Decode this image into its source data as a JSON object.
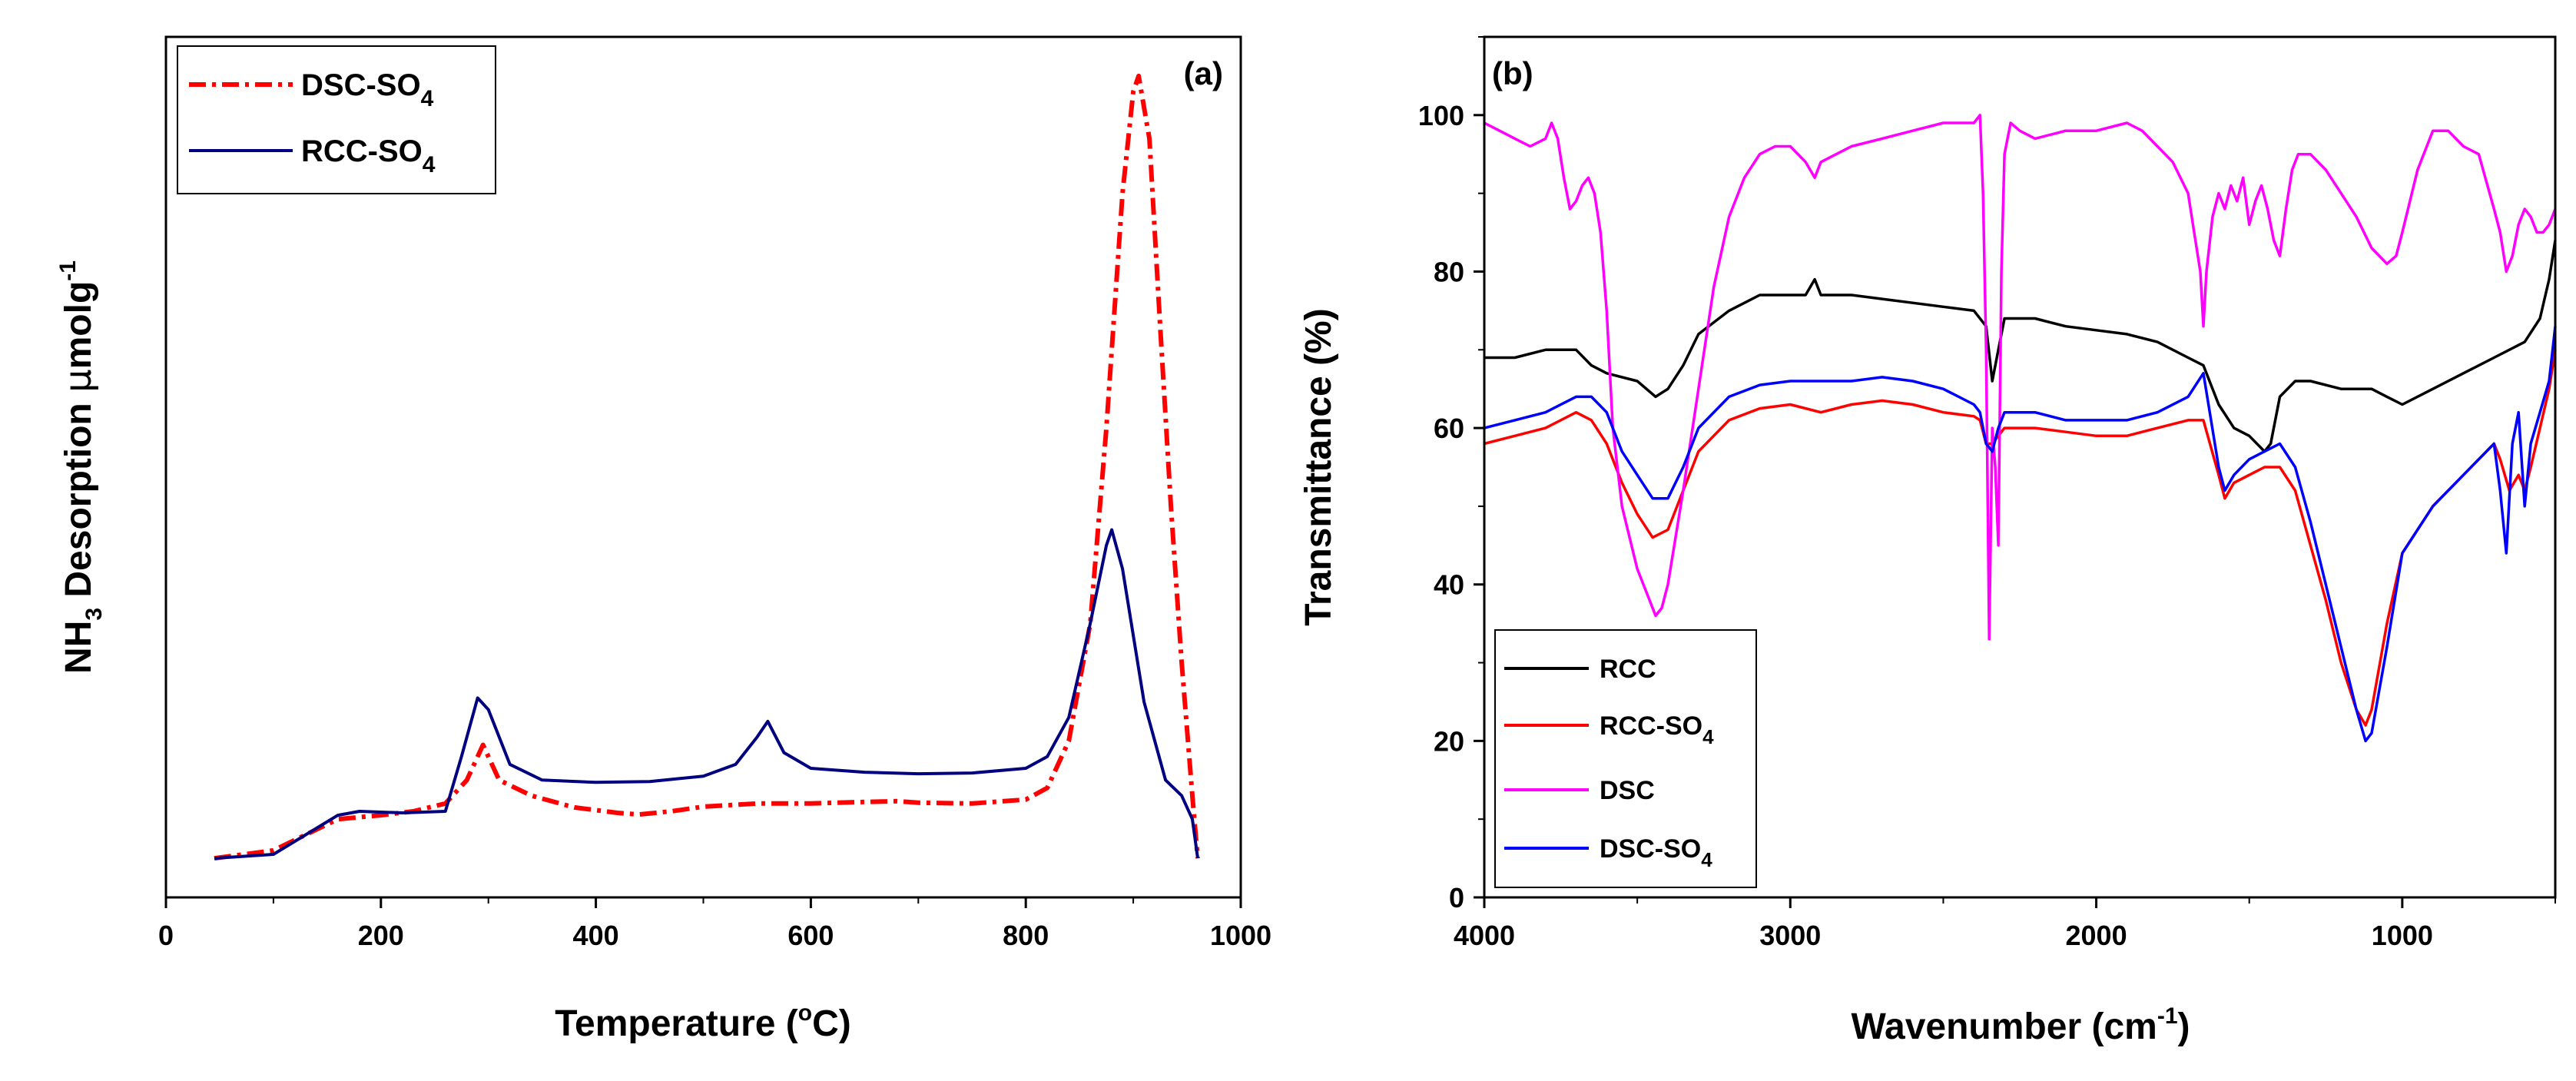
{
  "chart_data": [
    {
      "type": "line",
      "panel_label": "(a)",
      "xlabel": "Temperature (°C)",
      "xlabel_parts": {
        "prefix": "Temperature (",
        "sup": "o",
        "suffix": "C)"
      },
      "ylabel": "NH3 Desorption μmolg-1",
      "ylabel_parts": {
        "a": "NH",
        "sub": "3",
        "b": " Desorption ",
        "mu": "μ",
        "c": "molg",
        "sup": "-1"
      },
      "xlim": [
        0,
        1000
      ],
      "ylim": [
        -0.05,
        1.05
      ],
      "xticks": [
        "0",
        "200",
        "400",
        "600",
        "800",
        "1000"
      ],
      "yticks_shown": false,
      "legend_position": "top-left",
      "series": [
        {
          "name": "DSC-SO4",
          "label_parts": {
            "base": "DSC-SO",
            "sub": "4"
          },
          "color": "#ff0000",
          "style": "dash-dot",
          "x": [
            45,
            100,
            130,
            160,
            200,
            230,
            260,
            280,
            295,
            310,
            340,
            380,
            420,
            440,
            470,
            500,
            550,
            600,
            650,
            680,
            700,
            750,
            800,
            820,
            840,
            860,
            875,
            890,
            900,
            905,
            915,
            925,
            935,
            945,
            955,
            960
          ],
          "y": [
            0.0,
            0.01,
            0.03,
            0.05,
            0.055,
            0.06,
            0.07,
            0.1,
            0.145,
            0.1,
            0.08,
            0.065,
            0.058,
            0.056,
            0.06,
            0.066,
            0.07,
            0.07,
            0.072,
            0.073,
            0.071,
            0.07,
            0.075,
            0.09,
            0.15,
            0.3,
            0.55,
            0.85,
            0.98,
            1.0,
            0.92,
            0.68,
            0.45,
            0.25,
            0.08,
            0.0
          ]
        },
        {
          "name": "RCC-SO4",
          "label_parts": {
            "base": "RCC-SO",
            "sub": "4"
          },
          "color": "#000080",
          "style": "solid",
          "x": [
            45,
            100,
            130,
            160,
            180,
            220,
            260,
            275,
            290,
            300,
            320,
            350,
            400,
            450,
            500,
            530,
            550,
            560,
            575,
            600,
            650,
            700,
            750,
            800,
            820,
            840,
            860,
            875,
            880,
            890,
            910,
            930,
            945,
            955,
            960
          ],
          "y": [
            0.0,
            0.005,
            0.03,
            0.055,
            0.06,
            0.058,
            0.06,
            0.13,
            0.205,
            0.19,
            0.12,
            0.1,
            0.097,
            0.098,
            0.105,
            0.12,
            0.155,
            0.175,
            0.135,
            0.115,
            0.11,
            0.108,
            0.109,
            0.115,
            0.13,
            0.18,
            0.3,
            0.4,
            0.42,
            0.37,
            0.2,
            0.1,
            0.08,
            0.05,
            0.0
          ]
        }
      ]
    },
    {
      "type": "line",
      "panel_label": "(b)",
      "xlabel": "Wavenumber (cm-1)",
      "xlabel_parts": {
        "prefix": "Wavenumber (cm",
        "sup": "-1",
        "suffix": ")"
      },
      "ylabel": "Transmittance (%)",
      "xlim": [
        4000,
        500
      ],
      "ylim": [
        0,
        110
      ],
      "xticks": [
        "4000",
        "3000",
        "2000",
        "1000"
      ],
      "yticks": [
        "0",
        "20",
        "40",
        "60",
        "80",
        "100"
      ],
      "legend_position": "bottom-left",
      "series": [
        {
          "name": "RCC",
          "label_parts": {
            "base": "RCC",
            "sub": ""
          },
          "color": "#000000",
          "x": [
            4000,
            3900,
            3800,
            3750,
            3700,
            3650,
            3600,
            3500,
            3440,
            3400,
            3350,
            3300,
            3200,
            3100,
            3000,
            2950,
            2920,
            2900,
            2850,
            2800,
            2700,
            2600,
            2500,
            2400,
            2360,
            2340,
            2320,
            2300,
            2200,
            2100,
            2000,
            1900,
            1800,
            1700,
            1650,
            1600,
            1550,
            1500,
            1450,
            1430,
            1400,
            1350,
            1300,
            1200,
            1100,
            1050,
            1000,
            900,
            800,
            700,
            600,
            550,
            520,
            500
          ],
          "y": [
            69,
            69,
            70,
            70,
            70,
            68,
            67,
            66,
            64,
            65,
            68,
            72,
            75,
            77,
            77,
            77,
            79,
            77,
            77,
            77,
            76.5,
            76,
            75.5,
            75,
            73,
            66,
            70,
            74,
            74,
            73,
            72.5,
            72,
            71,
            69,
            68,
            63,
            60,
            59,
            57,
            58,
            64,
            66,
            66,
            65,
            65,
            64,
            63,
            65,
            67,
            69,
            71,
            74,
            79,
            84
          ]
        },
        {
          "name": "RCC-SO4",
          "label_parts": {
            "base": "RCC-SO",
            "sub": "4"
          },
          "color": "#ff0000",
          "x": [
            4000,
            3900,
            3800,
            3700,
            3650,
            3600,
            3550,
            3500,
            3450,
            3400,
            3350,
            3300,
            3200,
            3100,
            3000,
            2900,
            2800,
            2700,
            2600,
            2500,
            2400,
            2380,
            2360,
            2340,
            2320,
            2300,
            2200,
            2100,
            2000,
            1900,
            1800,
            1700,
            1650,
            1600,
            1580,
            1550,
            1500,
            1450,
            1400,
            1350,
            1300,
            1250,
            1200,
            1150,
            1120,
            1100,
            1050,
            1000,
            900,
            800,
            700,
            680,
            650,
            620,
            600,
            580,
            550,
            520,
            500
          ],
          "y": [
            58,
            59,
            60,
            62,
            61,
            58,
            53,
            49,
            46,
            47,
            52,
            57,
            61,
            62.5,
            63,
            62,
            63,
            63.5,
            63,
            62,
            61.5,
            61,
            58,
            58,
            59,
            60,
            60,
            59.5,
            59,
            59,
            60,
            61,
            61,
            54,
            51,
            53,
            54,
            55,
            55,
            52,
            45,
            38,
            30,
            24,
            22,
            24,
            35,
            44,
            50,
            54,
            58,
            56,
            52,
            54,
            52,
            55,
            60,
            65,
            70
          ]
        },
        {
          "name": "DSC",
          "label_parts": {
            "base": "DSC",
            "sub": ""
          },
          "color": "#ff00ff",
          "x": [
            4000,
            3950,
            3900,
            3850,
            3800,
            3780,
            3760,
            3740,
            3720,
            3700,
            3680,
            3660,
            3640,
            3620,
            3600,
            3580,
            3550,
            3500,
            3460,
            3440,
            3420,
            3400,
            3350,
            3300,
            3250,
            3200,
            3150,
            3100,
            3050,
            3000,
            2950,
            2920,
            2900,
            2850,
            2800,
            2700,
            2600,
            2500,
            2400,
            2380,
            2370,
            2360,
            2350,
            2340,
            2330,
            2320,
            2310,
            2300,
            2280,
            2250,
            2200,
            2100,
            2000,
            1900,
            1850,
            1800,
            1750,
            1700,
            1680,
            1660,
            1650,
            1640,
            1620,
            1600,
            1580,
            1560,
            1540,
            1520,
            1500,
            1480,
            1460,
            1440,
            1420,
            1400,
            1380,
            1360,
            1340,
            1300,
            1250,
            1200,
            1150,
            1100,
            1050,
            1020,
            1000,
            950,
            900,
            850,
            800,
            750,
            700,
            680,
            660,
            640,
            620,
            600,
            580,
            560,
            540,
            520,
            500
          ],
          "y": [
            99,
            98,
            97,
            96,
            97,
            99,
            97,
            92,
            88,
            89,
            91,
            92,
            90,
            85,
            75,
            60,
            50,
            42,
            38,
            36,
            37,
            40,
            52,
            65,
            78,
            87,
            92,
            95,
            96,
            96,
            94,
            92,
            94,
            95,
            96,
            97,
            98,
            99,
            99,
            100,
            90,
            70,
            33,
            60,
            55,
            45,
            80,
            95,
            99,
            98,
            97,
            98,
            98,
            99,
            98,
            96,
            94,
            90,
            85,
            80,
            73,
            80,
            87,
            90,
            88,
            91,
            89,
            92,
            86,
            89,
            91,
            88,
            84,
            82,
            88,
            93,
            95,
            95,
            93,
            90,
            87,
            83,
            81,
            82,
            85,
            93,
            98,
            98,
            96,
            95,
            88,
            85,
            80,
            82,
            86,
            88,
            87,
            85,
            85,
            86,
            88
          ]
        },
        {
          "name": "DSC-SO4",
          "label_parts": {
            "base": "DSC-SO",
            "sub": "4"
          },
          "color": "#0000ff",
          "x": [
            4000,
            3900,
            3800,
            3700,
            3650,
            3600,
            3550,
            3500,
            3450,
            3400,
            3350,
            3300,
            3200,
            3100,
            3000,
            2900,
            2800,
            2700,
            2600,
            2500,
            2400,
            2380,
            2360,
            2340,
            2320,
            2300,
            2200,
            2100,
            2000,
            1900,
            1800,
            1700,
            1650,
            1600,
            1580,
            1550,
            1500,
            1450,
            1400,
            1350,
            1300,
            1250,
            1200,
            1150,
            1120,
            1100,
            1050,
            1000,
            900,
            800,
            700,
            680,
            660,
            640,
            620,
            600,
            580,
            550,
            520,
            500
          ],
          "y": [
            60,
            61,
            62,
            64,
            64,
            62,
            57,
            54,
            51,
            51,
            55,
            60,
            64,
            65.5,
            66,
            66,
            66,
            66.5,
            66,
            65,
            63,
            62,
            58,
            57,
            60,
            62,
            62,
            61,
            61,
            61,
            62,
            64,
            67,
            55,
            52,
            54,
            56,
            57,
            58,
            55,
            48,
            40,
            32,
            24,
            20,
            21,
            32,
            44,
            50,
            54,
            58,
            52,
            44,
            58,
            62,
            50,
            58,
            62,
            66,
            73
          ]
        }
      ]
    }
  ]
}
